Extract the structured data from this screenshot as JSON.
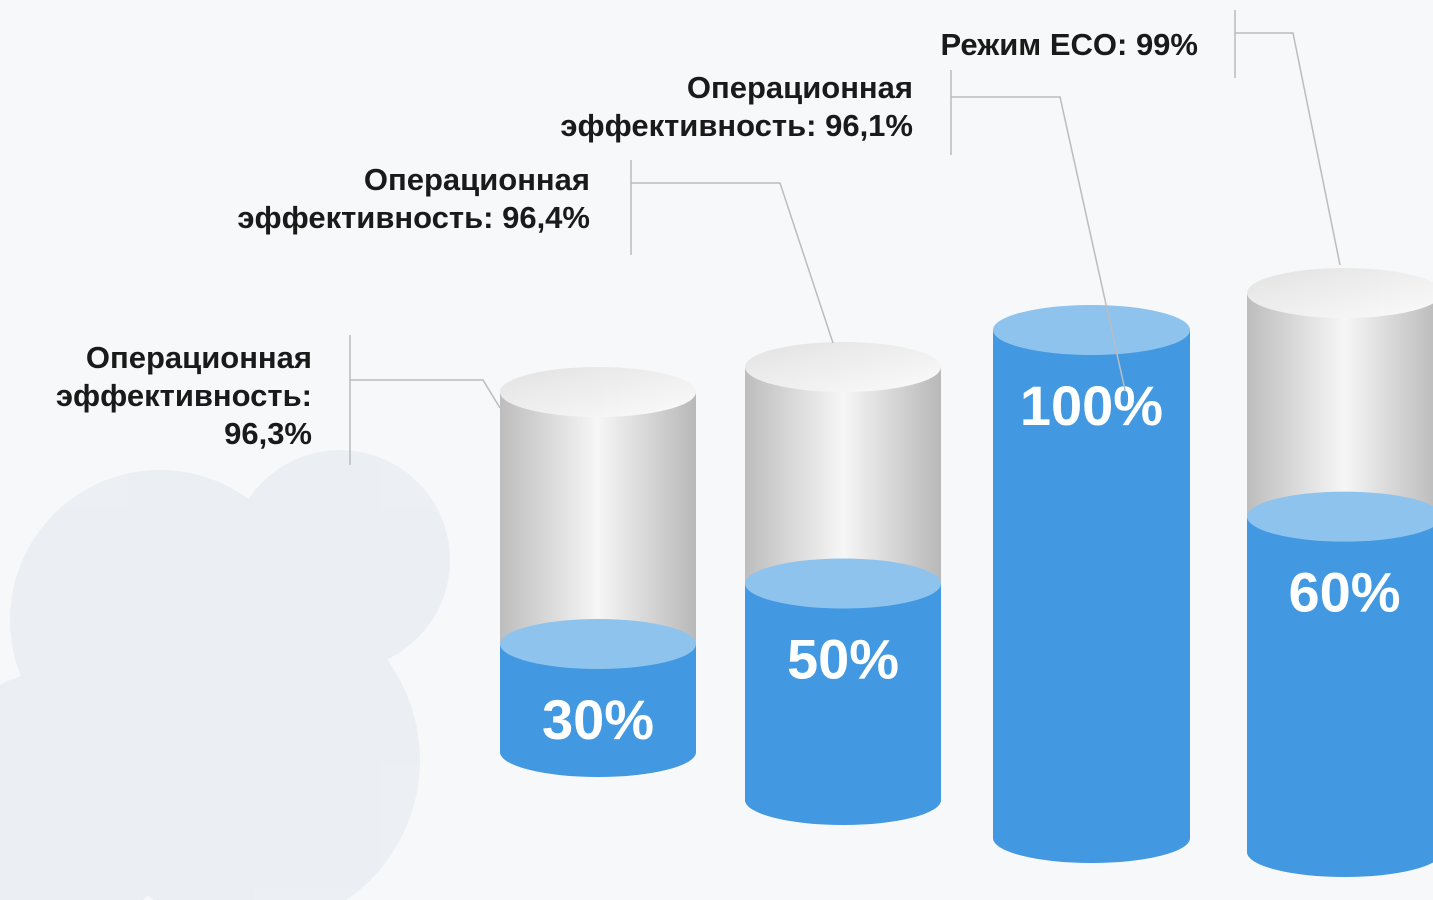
{
  "cylinders": [
    {
      "label": [
        "Операционная",
        "эффективность:",
        "96,3%"
      ],
      "value": 30,
      "value_label": "30%"
    },
    {
      "label": [
        "Операционная",
        "эффективность: 96,4%"
      ],
      "value": 50,
      "value_label": "50%"
    },
    {
      "label": [
        "Операционная",
        "эффективность: 96,1%"
      ],
      "value": 100,
      "value_label": "100%"
    },
    {
      "label": [
        "Режим ECO: 99%"
      ],
      "value": 60,
      "value_label": "60%"
    }
  ]
}
